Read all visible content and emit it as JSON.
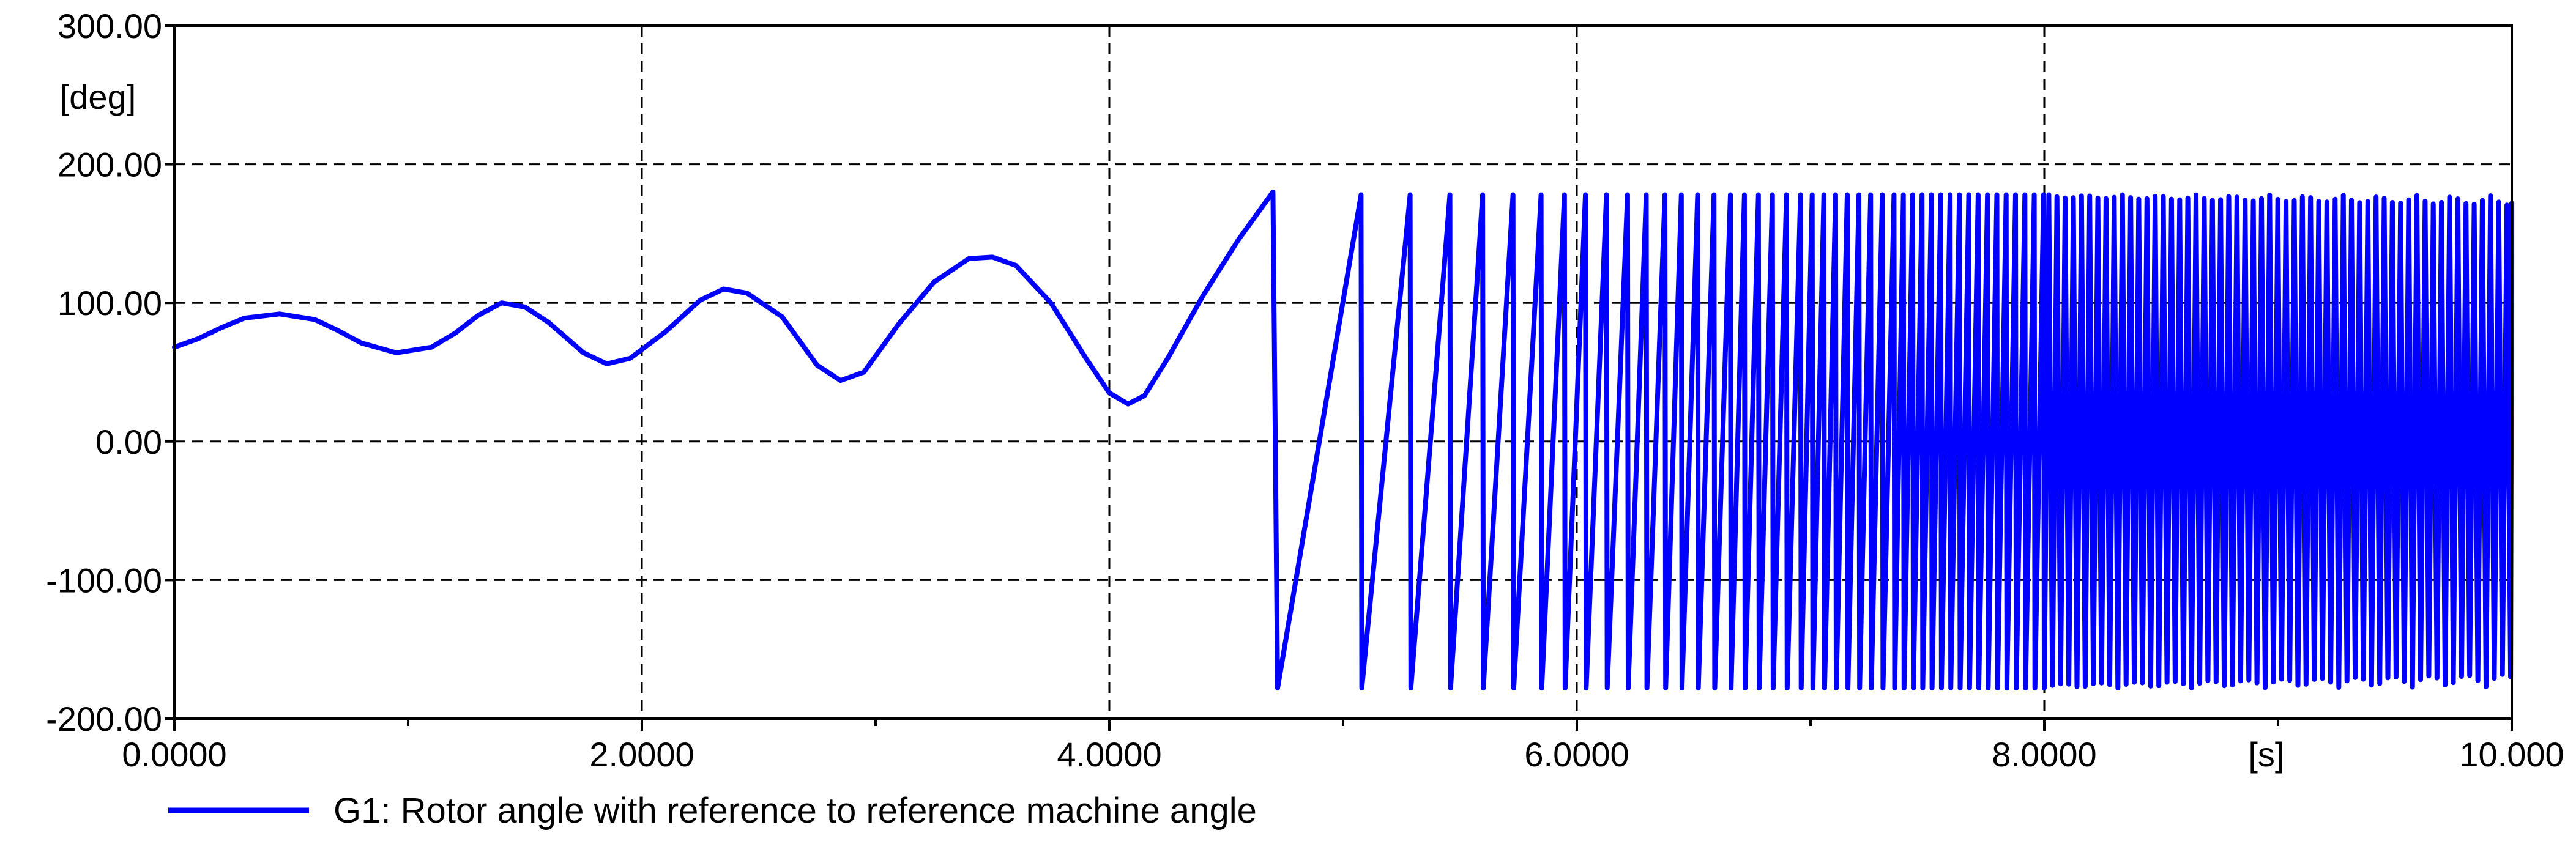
{
  "chart_data": {
    "type": "line",
    "title": "",
    "xlabel": "",
    "ylabel": "",
    "x_unit": "[s]",
    "y_unit": "[deg]",
    "xlim": [
      0,
      10
    ],
    "ylim": [
      -200,
      300
    ],
    "x_ticks": [
      0,
      2,
      4,
      6,
      8,
      10
    ],
    "x_tick_labels": [
      "0.0000",
      "2.0000",
      "4.0000",
      "6.0000",
      "8.0000",
      "10.000"
    ],
    "x_minor_ticks": [
      1,
      3,
      5,
      7,
      9
    ],
    "y_ticks": [
      300,
      200,
      100,
      0,
      -100,
      -200
    ],
    "y_tick_labels": [
      "300.00",
      "200.00",
      "100.00",
      "0.00",
      "-100.00",
      "-200.00"
    ],
    "grid": true,
    "legend_position": "bottom-left",
    "series": [
      {
        "name": "G1: Rotor angle with reference to reference machine angle",
        "color": "#0000ff",
        "pre_slip": {
          "x": [
            0.0,
            0.1,
            0.2,
            0.3,
            0.45,
            0.6,
            0.7,
            0.8,
            0.95,
            1.1,
            1.2,
            1.3,
            1.4,
            1.5,
            1.6,
            1.75,
            1.85,
            1.95,
            2.1,
            2.25,
            2.35,
            2.45,
            2.6,
            2.75,
            2.85,
            2.95,
            3.1,
            3.25,
            3.4,
            3.5,
            3.6,
            3.75,
            3.9,
            4.0,
            4.08,
            4.15,
            4.25,
            4.4,
            4.55,
            4.7
          ],
          "y": [
            68,
            74,
            82,
            89,
            92,
            88,
            80,
            71,
            64,
            68,
            78,
            91,
            100,
            97,
            86,
            64,
            56,
            60,
            79,
            102,
            110,
            107,
            90,
            55,
            44,
            50,
            85,
            115,
            132,
            133,
            127,
            100,
            60,
            35,
            27,
            33,
            60,
            105,
            145,
            180
          ]
        },
        "slip_times": [
          4.72,
          5.08,
          5.29,
          5.46,
          5.6,
          5.73,
          5.85,
          5.95,
          6.04,
          6.13,
          6.22,
          6.3,
          6.38,
          6.45,
          6.52,
          6.59,
          6.66,
          6.72,
          6.78,
          6.84,
          6.9,
          6.96,
          7.01,
          7.06,
          7.11,
          7.16,
          7.21,
          7.26,
          7.31,
          7.36,
          7.4,
          7.44,
          7.48,
          7.52,
          7.56,
          7.6,
          7.64,
          7.68,
          7.72,
          7.76,
          7.8,
          7.84,
          7.88,
          7.92,
          7.96,
          8.0
        ],
        "peak": 178,
        "trough": -178,
        "dense_oscillation_band": {
          "x": [
            8.0,
            10.0
          ],
          "y_min": -178,
          "y_max": 178
        }
      }
    ]
  }
}
